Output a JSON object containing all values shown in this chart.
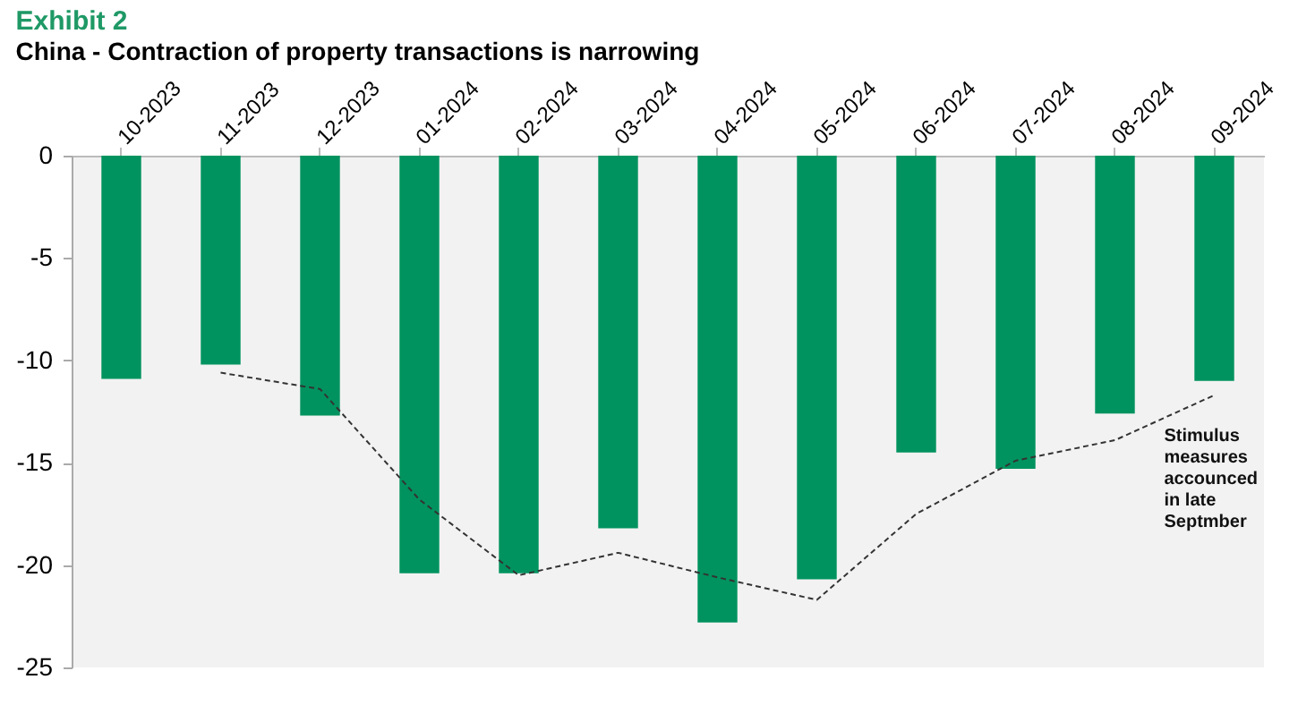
{
  "chart_data": {
    "type": "bar",
    "title": "Exhibit 2",
    "subtitle": "China - Contraction of property transactions is narrowing",
    "categories": [
      "10-2023",
      "11-2023",
      "12-2023",
      "01-2024",
      "02-2024",
      "03-2024",
      "04-2024",
      "05-2024",
      "06-2024",
      "07-2024",
      "08-2024",
      "09-2024"
    ],
    "series": [
      {
        "color": "#00935f",
        "values": [
          -10.9,
          -10.2,
          -12.7,
          -20.4,
          -20.4,
          -18.2,
          -22.8,
          -20.7,
          -14.5,
          -15.3,
          -12.6,
          -11.0
        ]
      },
      {
        "type": "line",
        "color": "#333333",
        "line_style": "dashed",
        "values": [
          null,
          -10.6,
          -11.4,
          -16.8,
          -20.5,
          -19.4,
          -20.6,
          -21.7,
          -17.5,
          -14.9,
          -13.9,
          -11.7
        ]
      }
    ],
    "ylim": [
      -25,
      0
    ],
    "yticks": [
      -25,
      -20,
      -15,
      -10,
      -5,
      0
    ],
    "grid": false,
    "annotations": [
      "Stimulus measures accounced in late Septmber"
    ]
  }
}
